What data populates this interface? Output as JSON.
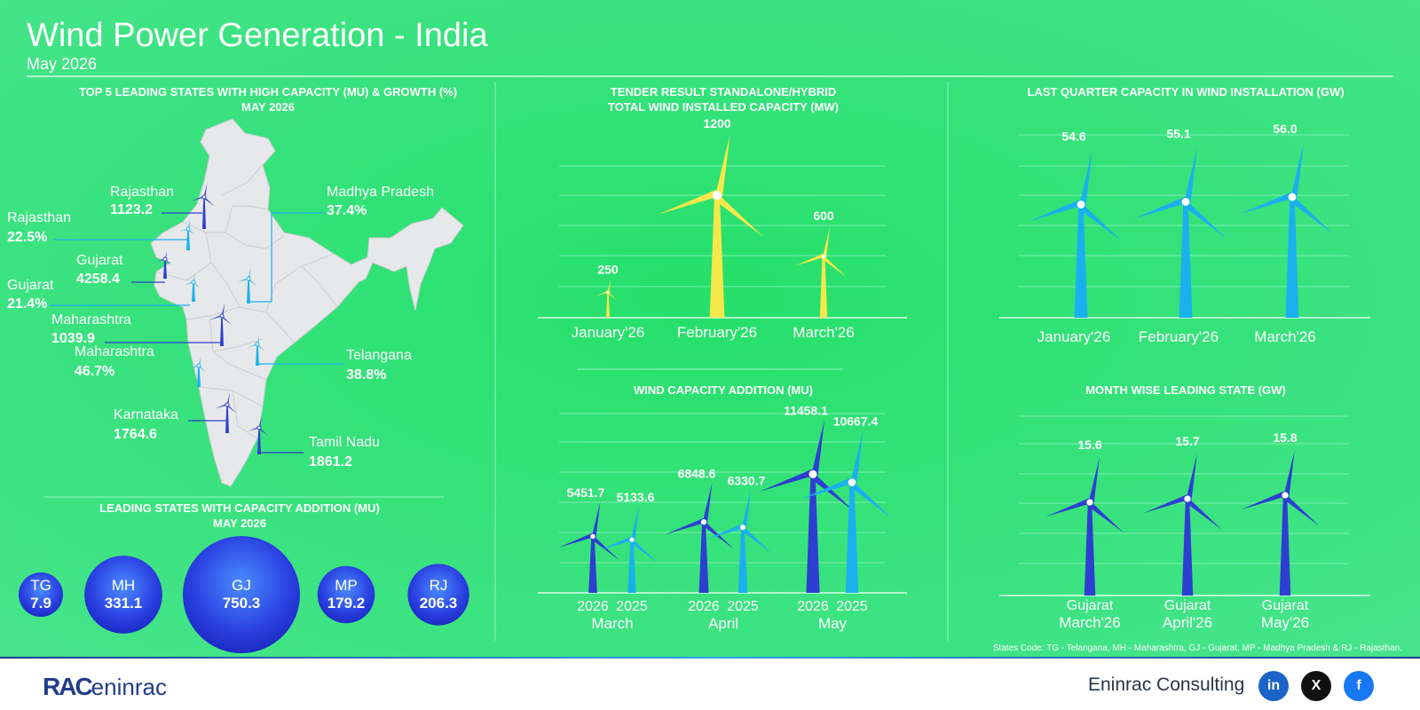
{
  "header": {
    "title": "Wind Power Generation - India",
    "subtitle": "May 2026"
  },
  "colors": {
    "background": "#37e07c",
    "dark_blue": "#2d3fd0",
    "light_blue": "#1ab0ee",
    "yellow": "#f4e84a",
    "white": "#ffffff",
    "map_fill": "#e6e8ea"
  },
  "map_panel": {
    "title": "TOP 5 LEADING STATES WITH HIGH CAPACITY (MU) & GROWTH (%)",
    "subtitle": "MAY 2026",
    "capacity_labels": [
      {
        "state": "Rajasthan",
        "value": "1123.2"
      },
      {
        "state": "Gujarat",
        "value": "4258.4"
      },
      {
        "state": "Maharashtra",
        "value": "1039.9"
      },
      {
        "state": "Karnataka",
        "value": "1764.6"
      },
      {
        "state": "Tamil Nadu",
        "value": "1861.2"
      }
    ],
    "growth_labels": [
      {
        "state": "Rajasthan",
        "value": "22.5%"
      },
      {
        "state": "Gujarat",
        "value": "21.4%"
      },
      {
        "state": "Maharashtra",
        "value": "46.7%"
      },
      {
        "state": "Madhya Pradesh",
        "value": "37.4%"
      },
      {
        "state": "Telangana",
        "value": "38.8%"
      }
    ]
  },
  "chart_data": [
    {
      "id": "tender",
      "type": "bar",
      "title": "TENDER RESULT STANDALONE/HYBRID",
      "subtitle": "TOTAL WIND INSTALLED CAPACITY (MW)",
      "categories": [
        "January'26",
        "February'26",
        "March'26"
      ],
      "values": [
        250,
        1200,
        600
      ],
      "value_labels": [
        "250",
        "1200",
        "600"
      ],
      "ylim": [
        0,
        1200
      ],
      "grid": true
    },
    {
      "id": "last_quarter",
      "type": "bar",
      "title": "LAST QUARTER CAPACITY IN WIND INSTALLATION (GW)",
      "categories": [
        "January'26",
        "February'26",
        "March'26"
      ],
      "values": [
        54.6,
        55.1,
        56.0
      ],
      "value_labels": [
        "54.6",
        "55.1",
        "56.0"
      ],
      "grid": true
    },
    {
      "id": "capacity_addition",
      "type": "bar",
      "title": "WIND CAPACITY ADDITION (MU)",
      "categories": [
        "March",
        "April",
        "May"
      ],
      "series_labels": [
        "2026",
        "2025"
      ],
      "series": [
        {
          "values": [
            5451.7,
            6848.6,
            11458.1
          ],
          "value_labels": [
            "5451.7",
            "6848.6",
            "11458.1"
          ]
        },
        {
          "values": [
            5133.6,
            6330.7,
            10667.4
          ],
          "value_labels": [
            "5133.6",
            "6330.7",
            "10667.4"
          ]
        }
      ],
      "ylim": [
        0,
        12000
      ],
      "grid": true
    },
    {
      "id": "month_leading",
      "type": "bar",
      "title": "MONTH WISE LEADING STATE (GW)",
      "categories": [
        "March'26",
        "April'26",
        "May'26"
      ],
      "category_states": [
        "Gujarat",
        "Gujarat",
        "Gujarat"
      ],
      "values": [
        15.6,
        15.7,
        15.8
      ],
      "value_labels": [
        "15.6",
        "15.7",
        "15.8"
      ],
      "grid": true
    },
    {
      "id": "state_bubbles",
      "type": "bubble",
      "title": "LEADING STATES WITH CAPACITY ADDITION (MU)",
      "subtitle": "MAY 2026",
      "categories": [
        "TG",
        "MH",
        "GJ",
        "MP",
        "RJ"
      ],
      "values": [
        7.9,
        331.1,
        750.3,
        179.2,
        206.3
      ],
      "value_labels": [
        "7.9",
        "331.1",
        "750.3",
        "179.2",
        "206.3"
      ]
    }
  ],
  "footnote": "States Code: TG - Telangana, MH - Maharashtra, GJ - Gujarat, MP - Madhya Pradesh & RJ - Rajasthan.",
  "footer": {
    "brand": "Eninrac Consulting",
    "logo_rac": "RAC",
    "logo_text": "eninrac",
    "social": [
      {
        "name": "linkedin-icon",
        "glyph": "in",
        "color": "#1a63c9"
      },
      {
        "name": "x-icon",
        "glyph": "X",
        "color": "#111111"
      },
      {
        "name": "facebook-icon",
        "glyph": "f",
        "color": "#1877f2"
      }
    ]
  }
}
